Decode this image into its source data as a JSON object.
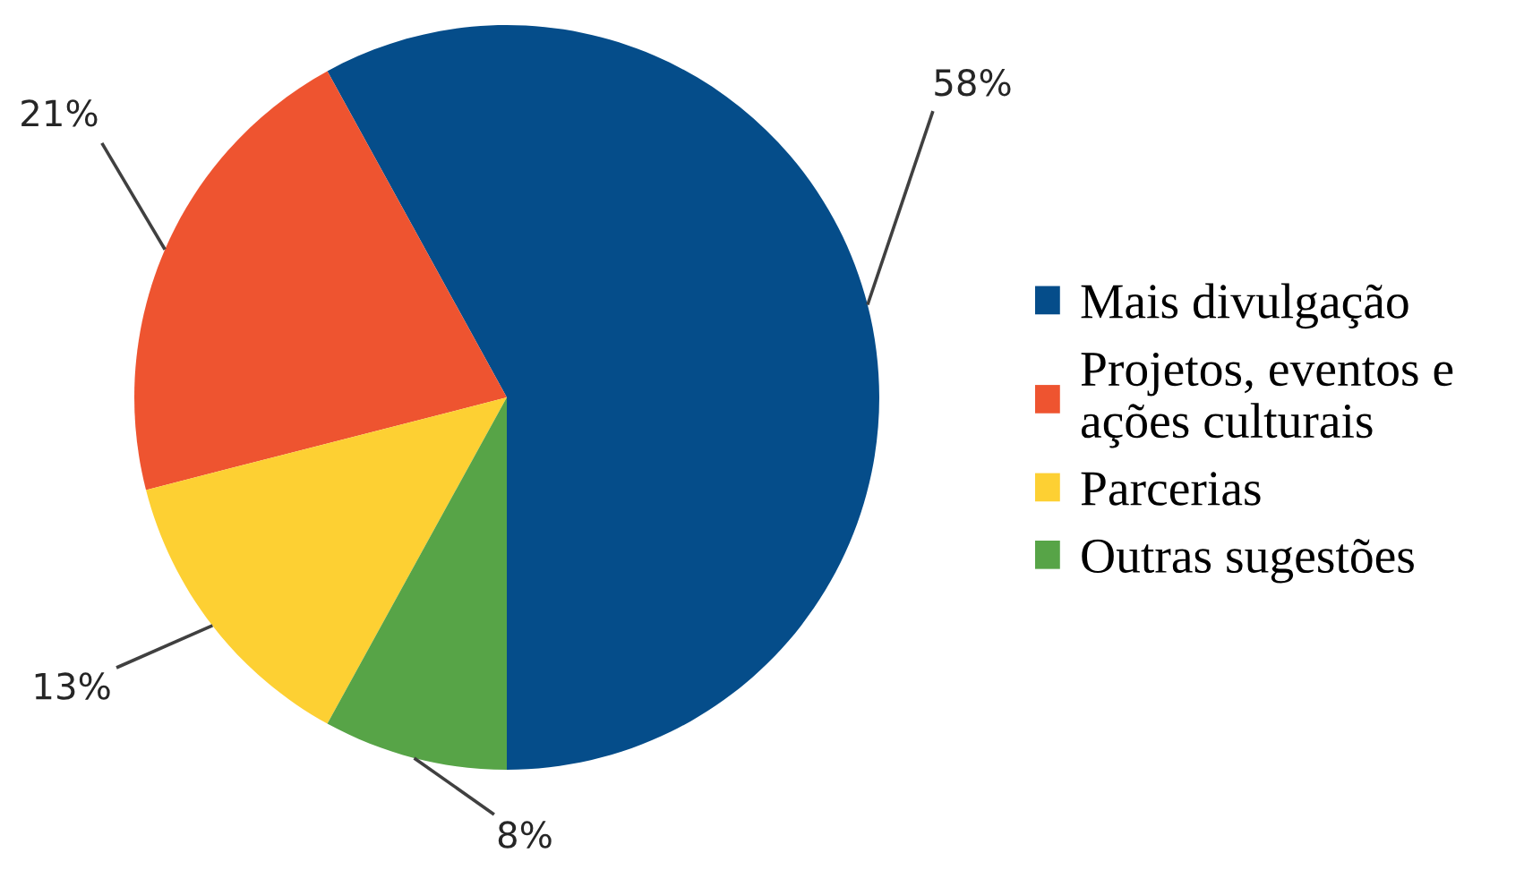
{
  "chart_data": {
    "type": "pie",
    "categories": [
      "Mais divulgação",
      "Projetos, eventos e\nações culturais",
      "Parcerias",
      "Outras sugestões"
    ],
    "values": [
      58,
      21,
      13,
      8
    ],
    "colors": [
      "#054d8a",
      "#ee5430",
      "#fdd033",
      "#57a447"
    ],
    "value_labels": [
      "58%",
      "21%",
      "13%",
      "8%"
    ],
    "legend": "right"
  }
}
